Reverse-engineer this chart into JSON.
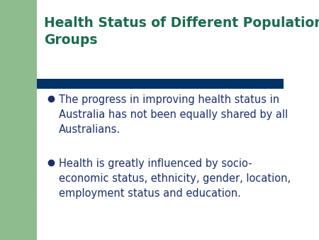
{
  "title": "Health Status of Different Population\nGroups",
  "title_color": "#1a6b50",
  "title_fontsize": 13.5,
  "title_fontweight": "bold",
  "divider_color": "#003366",
  "bullet_color": "#1a2f6b",
  "bullet_points": [
    "The progress in improving health status in\nAustralia has not been equally shared by all\nAustralians.",
    "Health is greatly influenced by socio-\neconomic status, ethnicity, gender, location,\nemployment status and education."
  ],
  "bullet_fontsize": 10.5,
  "bullet_marker_size": 6,
  "left_bar_color": "#8fbc8f",
  "background_color": "#ffffff",
  "green_bg_color": "#8fbc8f"
}
